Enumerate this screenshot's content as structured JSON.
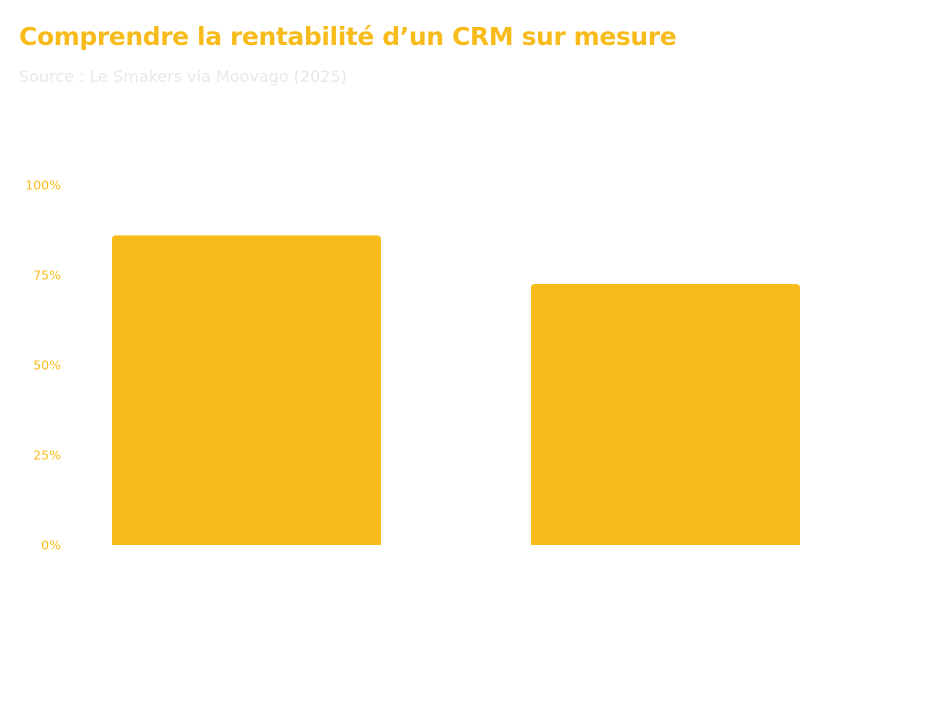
{
  "title": "Comprendre la rentabilité d’un CRM sur mesure",
  "subtitle": "Source : Le Smakers via Moovago (2025)",
  "colors": {
    "accent": "#f7bc1c",
    "subtitle": "#e8e8ea",
    "background": "#ffffff"
  },
  "chart_data": {
    "type": "bar",
    "title": "Comprendre la rentabilité d’un CRM sur mesure",
    "subtitle": "Source : Le Smakers via Moovago (2025)",
    "categories": [
      "",
      ""
    ],
    "values": [
      86,
      72.5
    ],
    "unit": "%",
    "ylim": [
      0,
      100
    ],
    "y_ticks": [
      0,
      25,
      50,
      75,
      100
    ],
    "y_tick_labels": [
      "0%",
      "25%",
      "50%",
      "75%",
      "100%"
    ],
    "xlabel": "",
    "ylabel": "",
    "grid": false,
    "legend": "none"
  }
}
